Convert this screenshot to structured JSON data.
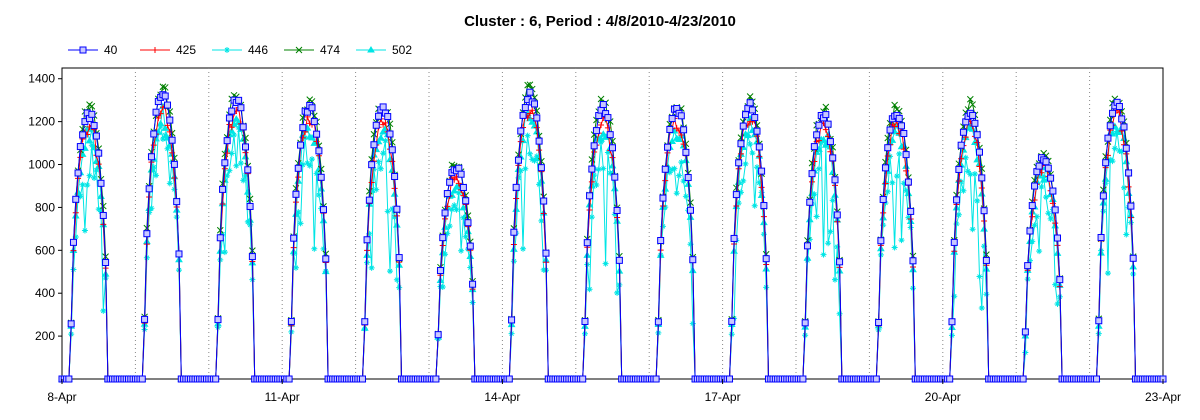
{
  "chart_data": {
    "type": "line",
    "title": "Cluster : 6, Period : 4/8/2010-4/23/2010",
    "xlabel": "",
    "ylabel": "",
    "x_range_days": [
      0,
      15
    ],
    "x_ticks": [
      "8-Apr",
      "11-Apr",
      "14-Apr",
      "17-Apr",
      "20-Apr",
      "23-Apr"
    ],
    "x_tick_days": [
      0,
      3,
      6,
      9,
      12,
      15
    ],
    "ylim": [
      0,
      1450
    ],
    "y_ticks": [
      200,
      400,
      600,
      800,
      1000,
      1200,
      1400
    ],
    "legend_position": "top-left",
    "grid": "dotted vertical lines at day boundaries",
    "day_peaks": [
      1250,
      1340,
      1320,
      1290,
      1280,
      1000,
      1340,
      1280,
      1280,
      1300,
      1250,
      1260,
      1270,
      1050,
      1300
    ],
    "series": [
      {
        "name": "40",
        "color": "#0000ff",
        "marker": "square",
        "peak_factor": 1.0,
        "noise": 0.03
      },
      {
        "name": "425",
        "color": "#ff0000",
        "marker": "plus",
        "peak_factor": 0.97,
        "noise": 0.06
      },
      {
        "name": "446",
        "color": "#00e5e5",
        "marker": "star",
        "peak_factor": 0.9,
        "noise": 0.18
      },
      {
        "name": "474",
        "color": "#008000",
        "marker": "x",
        "peak_factor": 1.03,
        "noise": 0.05
      },
      {
        "name": "502",
        "color": "#00e5e5",
        "marker": "triangle",
        "peak_factor": 0.95,
        "noise": 0.08
      }
    ]
  }
}
